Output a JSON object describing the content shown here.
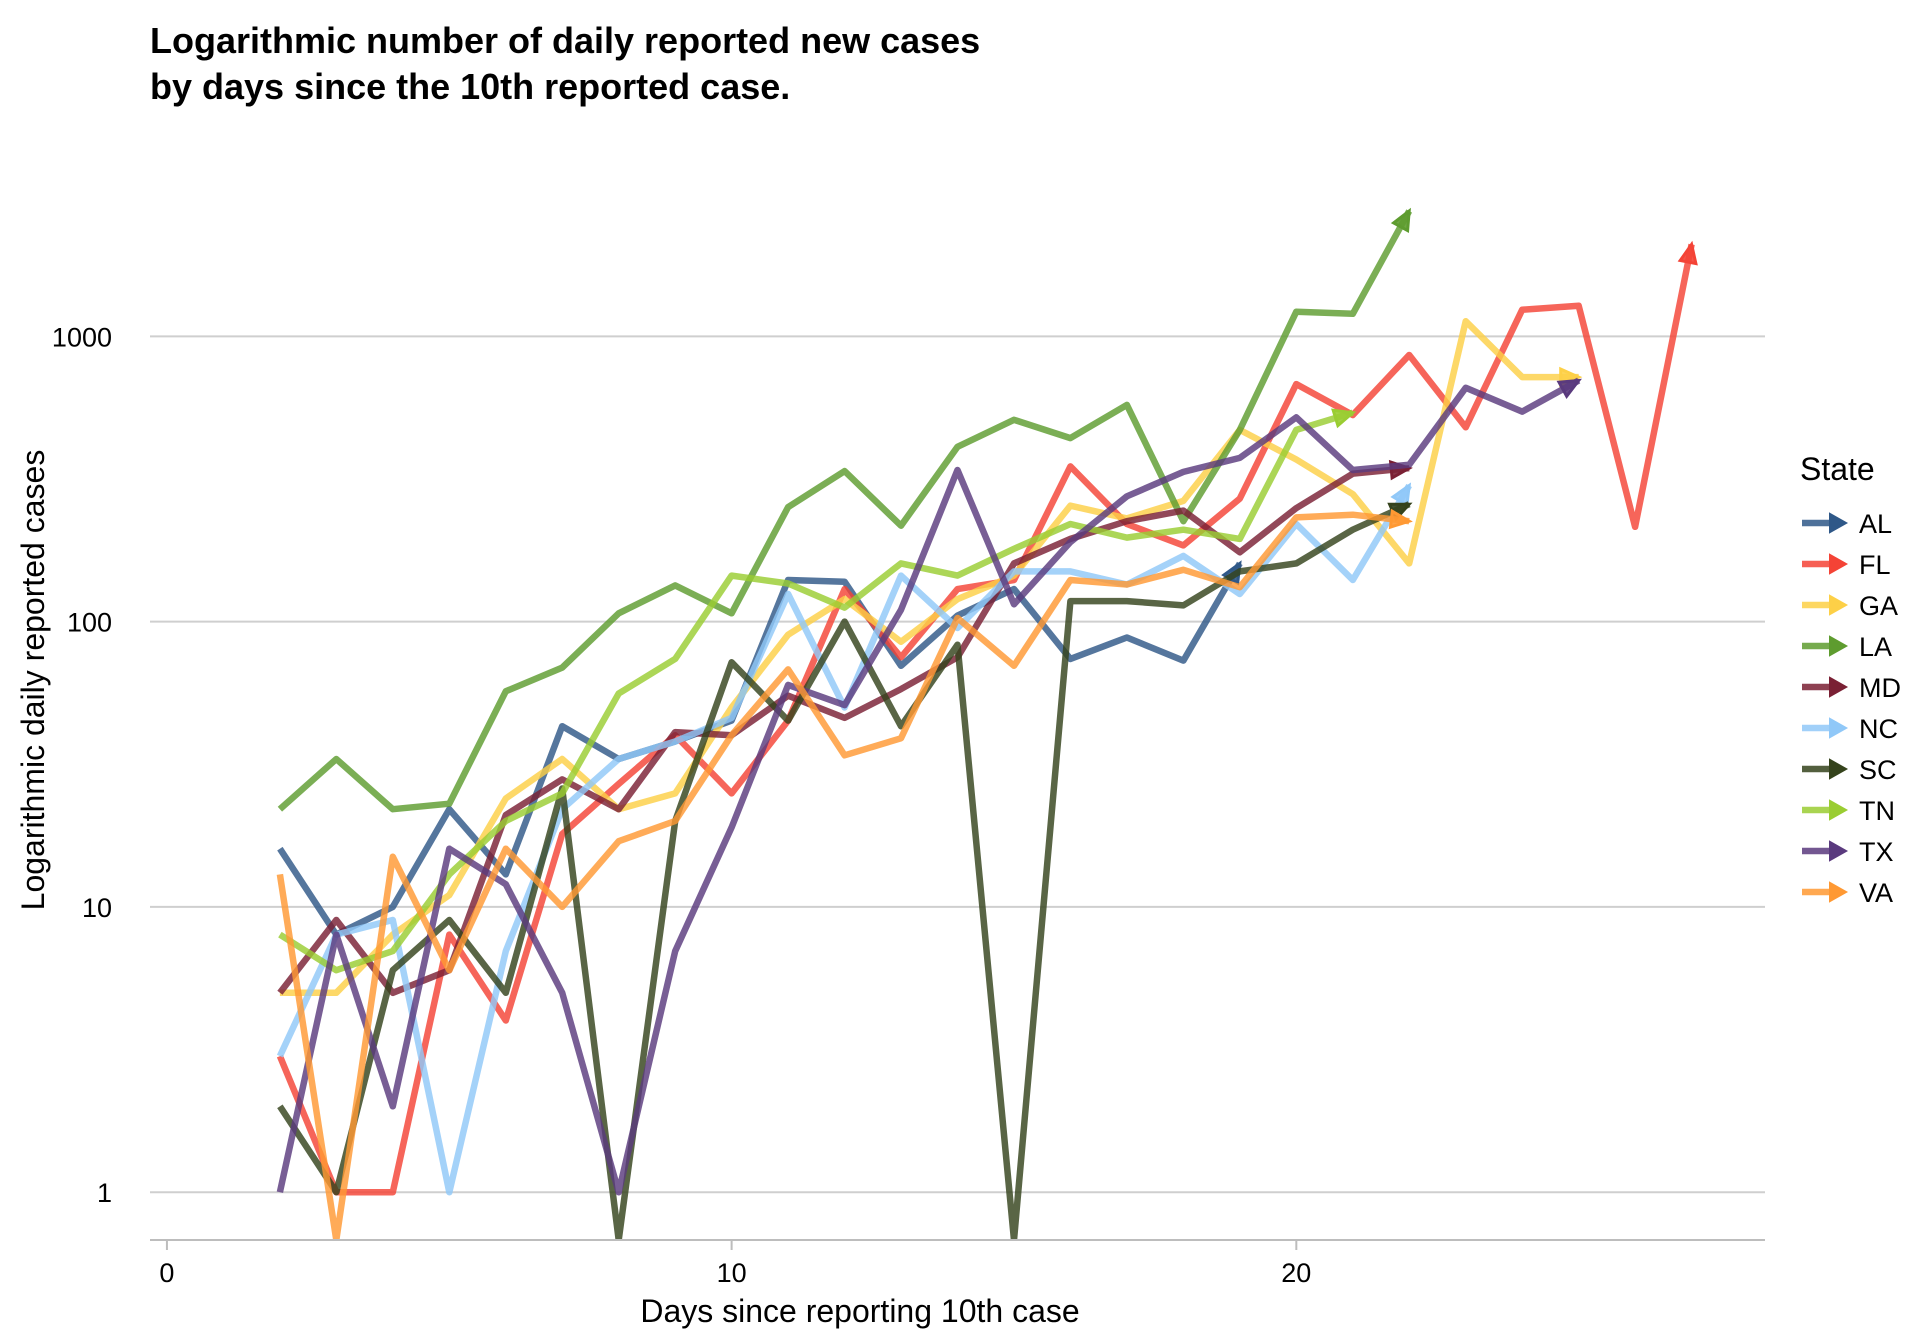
{
  "chart_data": {
    "type": "line",
    "title_lines": [
      "Logarithmic number of daily reported new cases",
      "by days since the 10th reported case."
    ],
    "xlabel": "Days since reporting 10th case",
    "ylabel": "Logarithmic daily reported cases",
    "x_ticks": [
      0,
      10,
      20
    ],
    "y_ticks": [
      1,
      10,
      100,
      1000
    ],
    "y_scale": "log10",
    "xlim": [
      -0.3,
      28.3
    ],
    "ylim": [
      0.68,
      4500
    ],
    "grid": "horizontal major",
    "legend": {
      "title": "State",
      "placement": "right"
    },
    "series": [
      {
        "name": "AL",
        "color": "#2F5888",
        "x": [
          2,
          3,
          4,
          5,
          6,
          7,
          8,
          9,
          10,
          11,
          12,
          13,
          14,
          15,
          16,
          17,
          18,
          19
        ],
        "y": [
          16,
          8,
          10,
          22,
          13,
          43,
          33,
          38,
          45,
          140,
          138,
          70,
          105,
          130,
          74,
          88,
          73,
          160
        ]
      },
      {
        "name": "FL",
        "color": "#F44336",
        "x": [
          2,
          3,
          4,
          5,
          6,
          7,
          8,
          9,
          10,
          11,
          12,
          13,
          14,
          15,
          16,
          17,
          18,
          19,
          20,
          21,
          22,
          23,
          24,
          25,
          26,
          27
        ],
        "y": [
          3,
          1,
          1,
          8,
          4,
          18,
          27,
          40,
          25,
          45,
          130,
          75,
          130,
          140,
          350,
          220,
          185,
          270,
          680,
          530,
          860,
          480,
          1240,
          1280,
          215,
          2100
        ]
      },
      {
        "name": "GA",
        "color": "#FDD047",
        "x": [
          2,
          3,
          4,
          5,
          6,
          7,
          8,
          9,
          10,
          11,
          12,
          13,
          14,
          15,
          16,
          17,
          18,
          19,
          20,
          21,
          22,
          23,
          24,
          25
        ],
        "y": [
          5,
          5,
          8,
          11,
          24,
          33,
          22,
          25,
          50,
          90,
          120,
          85,
          120,
          145,
          255,
          230,
          265,
          470,
          370,
          280,
          160,
          1130,
          720,
          720
        ]
      },
      {
        "name": "LA",
        "color": "#5E9C2F",
        "x": [
          2,
          3,
          4,
          5,
          6,
          7,
          8,
          9,
          10,
          11,
          12,
          13,
          14,
          15,
          16,
          17,
          18,
          19,
          20,
          21,
          22
        ],
        "y": [
          22,
          33,
          22,
          23,
          57,
          69,
          107,
          134,
          107,
          252,
          337,
          217,
          410,
          510,
          440,
          575,
          225,
          470,
          1220,
          1200,
          2750
        ]
      },
      {
        "name": "MD",
        "color": "#7A2034",
        "x": [
          2,
          3,
          4,
          5,
          6,
          7,
          8,
          9,
          10,
          11,
          12,
          13,
          14,
          15,
          16,
          17,
          18,
          19,
          20,
          21,
          22
        ],
        "y": [
          5,
          9,
          5,
          6,
          21,
          28,
          22,
          41,
          40,
          55,
          46,
          58,
          75,
          160,
          195,
          225,
          245,
          175,
          250,
          330,
          345
        ]
      },
      {
        "name": "NC",
        "color": "#90C8F8",
        "x": [
          2,
          3,
          4,
          5,
          6,
          7,
          8,
          9,
          10,
          11,
          12,
          13,
          14,
          15,
          16,
          17,
          18,
          19,
          20,
          21,
          22
        ],
        "y": [
          3,
          8,
          9,
          1,
          7,
          22,
          33,
          38,
          46,
          125,
          50,
          145,
          95,
          150,
          150,
          135,
          170,
          125,
          220,
          140,
          300
        ]
      },
      {
        "name": "SC",
        "color": "#35431C",
        "x": [
          2,
          3,
          4,
          5,
          6,
          7,
          8,
          9,
          10,
          11,
          12,
          13,
          14,
          15,
          16,
          17,
          18,
          19,
          20,
          21,
          22
        ],
        "y": [
          2,
          1,
          6,
          9,
          5,
          26,
          0.6,
          20,
          72,
          45,
          100,
          43,
          83,
          0.6,
          118,
          118,
          114,
          150,
          160,
          210,
          258
        ]
      },
      {
        "name": "TN",
        "color": "#9ACD32",
        "x": [
          2,
          3,
          4,
          5,
          6,
          7,
          8,
          9,
          10,
          11,
          12,
          13,
          14,
          15,
          16,
          17,
          18,
          19,
          20,
          21
        ],
        "y": [
          8,
          6,
          7,
          13,
          20,
          25,
          56,
          74,
          145,
          136,
          112,
          160,
          145,
          180,
          220,
          197,
          210,
          195,
          470,
          540
        ]
      },
      {
        "name": "TX",
        "color": "#5A3A7E",
        "x": [
          2,
          3,
          4,
          5,
          6,
          7,
          8,
          9,
          10,
          11,
          12,
          13,
          14,
          15,
          16,
          17,
          18,
          19,
          20,
          21,
          22,
          23,
          24,
          25
        ],
        "y": [
          1,
          8,
          2,
          16,
          12,
          5,
          1,
          7,
          19,
          60,
          51,
          110,
          340,
          115,
          190,
          275,
          335,
          375,
          520,
          340,
          355,
          660,
          545,
          700
        ]
      },
      {
        "name": "VA",
        "color": "#FF9933",
        "x": [
          2,
          3,
          4,
          5,
          6,
          7,
          8,
          9,
          10,
          11,
          12,
          13,
          14,
          15,
          16,
          17,
          18,
          19,
          20,
          21,
          22
        ],
        "y": [
          13,
          0.6,
          15,
          6,
          16,
          10,
          17,
          20,
          40,
          68,
          34,
          39,
          103,
          70,
          140,
          135,
          152,
          132,
          232,
          237,
          225
        ]
      }
    ]
  }
}
